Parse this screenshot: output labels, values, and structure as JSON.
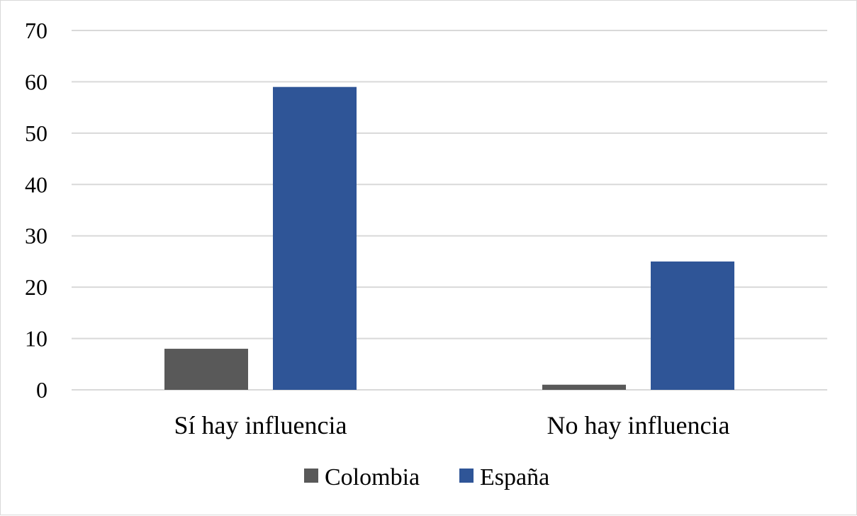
{
  "chart_data": {
    "type": "bar",
    "categories": [
      "Sí hay influencia",
      "No hay influencia"
    ],
    "series": [
      {
        "name": "Colombia",
        "values": [
          8,
          1
        ],
        "color": "#595959"
      },
      {
        "name": "España",
        "values": [
          59,
          25
        ],
        "color": "#2F5597"
      }
    ],
    "title": "",
    "xlabel": "",
    "ylabel": "",
    "ylim": [
      0,
      70
    ],
    "yticks": [
      0,
      10,
      20,
      30,
      40,
      50,
      60,
      70
    ],
    "grid": true,
    "gridColor": "#D9D9D9",
    "legend": "bottom"
  }
}
